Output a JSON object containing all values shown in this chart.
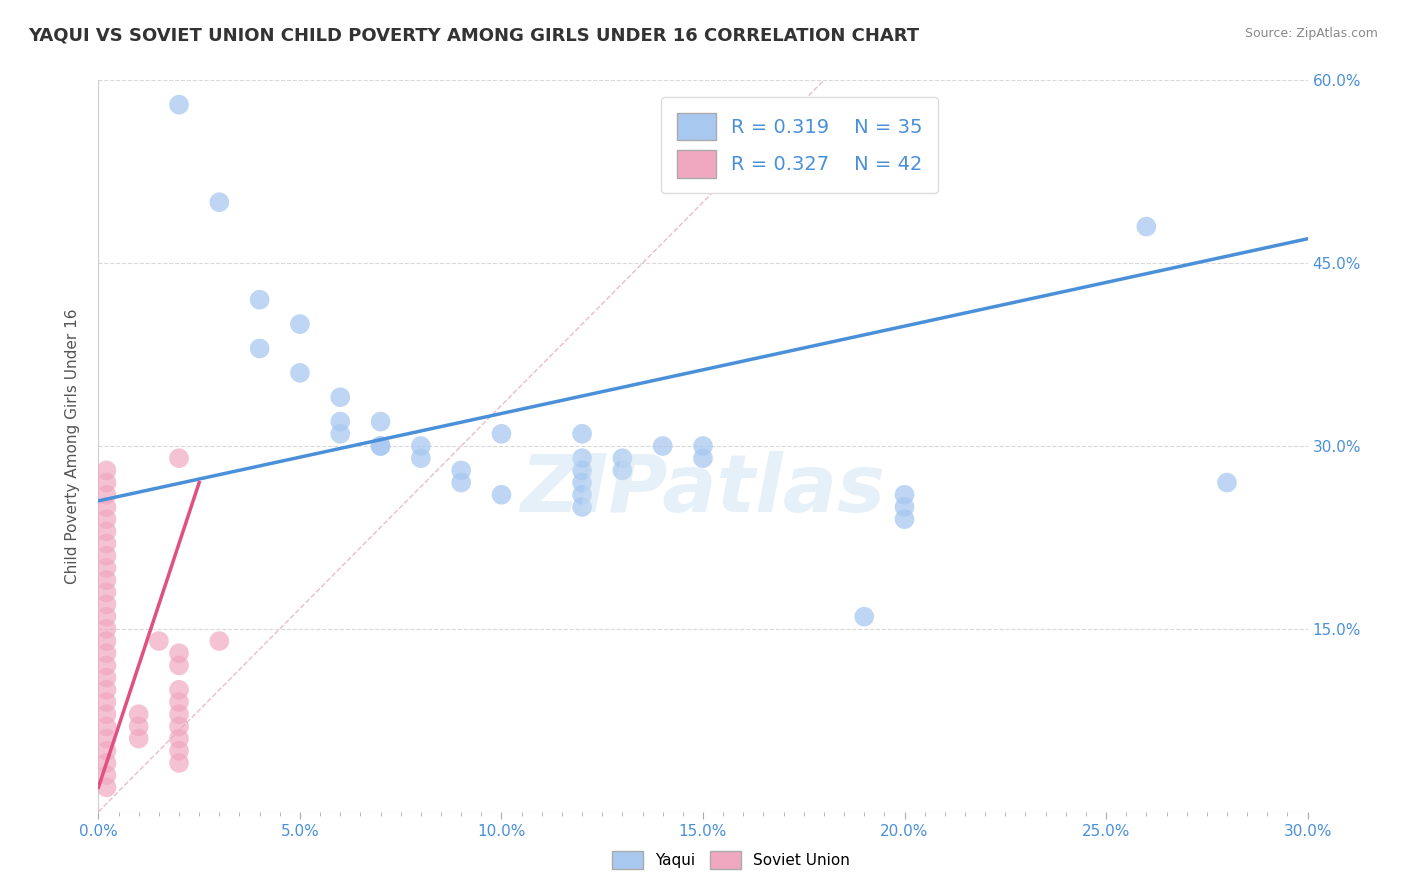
{
  "title": "YAQUI VS SOVIET UNION CHILD POVERTY AMONG GIRLS UNDER 16 CORRELATION CHART",
  "source": "Source: ZipAtlas.com",
  "ylabel": "Child Poverty Among Girls Under 16",
  "xlim": [
    0.0,
    0.3
  ],
  "ylim": [
    0.0,
    0.6
  ],
  "xtick_labels": [
    "0.0%",
    "",
    "",
    "",
    "",
    "",
    "",
    "",
    "",
    "5.0%",
    "",
    "",
    "",
    "",
    "",
    "",
    "",
    "",
    "",
    "10.0%",
    "",
    "",
    "",
    "",
    "",
    "",
    "",
    "",
    "",
    "15.0%",
    "",
    "",
    "",
    "",
    "",
    "",
    "",
    "",
    "",
    "20.0%",
    "",
    "",
    "",
    "",
    "",
    "",
    "",
    "",
    "",
    "25.0%",
    "",
    "",
    "",
    "",
    "",
    "",
    "",
    "",
    "",
    "30.0%"
  ],
  "xtick_major_labels": [
    "0.0%",
    "5.0%",
    "10.0%",
    "15.0%",
    "20.0%",
    "25.0%",
    "30.0%"
  ],
  "xtick_major_vals": [
    0.0,
    0.05,
    0.1,
    0.15,
    0.2,
    0.25,
    0.3
  ],
  "ytick_labels": [
    "15.0%",
    "30.0%",
    "45.0%",
    "60.0%"
  ],
  "ytick_vals": [
    0.15,
    0.3,
    0.45,
    0.6
  ],
  "yaqui_color": "#a8c8f0",
  "soviet_color": "#f0a8c0",
  "yaqui_line_color": "#4a90d9",
  "soviet_line_color": "#e05080",
  "diag_color": "#f0a8c0",
  "yaqui_R": 0.319,
  "yaqui_N": 35,
  "soviet_R": 0.327,
  "soviet_N": 42,
  "watermark": "ZIPatlas",
  "legend_label1": "Yaqui",
  "legend_label2": "Soviet Union",
  "yaqui_scatter": [
    [
      0.02,
      0.58
    ],
    [
      0.03,
      0.5
    ],
    [
      0.04,
      0.42
    ],
    [
      0.04,
      0.38
    ],
    [
      0.05,
      0.4
    ],
    [
      0.05,
      0.36
    ],
    [
      0.06,
      0.34
    ],
    [
      0.06,
      0.32
    ],
    [
      0.06,
      0.31
    ],
    [
      0.07,
      0.32
    ],
    [
      0.07,
      0.3
    ],
    [
      0.07,
      0.3
    ],
    [
      0.08,
      0.3
    ],
    [
      0.08,
      0.29
    ],
    [
      0.09,
      0.28
    ],
    [
      0.09,
      0.27
    ],
    [
      0.1,
      0.31
    ],
    [
      0.1,
      0.26
    ],
    [
      0.12,
      0.31
    ],
    [
      0.12,
      0.29
    ],
    [
      0.12,
      0.28
    ],
    [
      0.12,
      0.27
    ],
    [
      0.12,
      0.26
    ],
    [
      0.12,
      0.25
    ],
    [
      0.13,
      0.29
    ],
    [
      0.13,
      0.28
    ],
    [
      0.14,
      0.3
    ],
    [
      0.15,
      0.29
    ],
    [
      0.15,
      0.3
    ],
    [
      0.19,
      0.16
    ],
    [
      0.2,
      0.26
    ],
    [
      0.2,
      0.25
    ],
    [
      0.2,
      0.24
    ],
    [
      0.26,
      0.48
    ],
    [
      0.28,
      0.27
    ]
  ],
  "soviet_scatter": [
    [
      0.002,
      0.28
    ],
    [
      0.002,
      0.27
    ],
    [
      0.002,
      0.26
    ],
    [
      0.002,
      0.25
    ],
    [
      0.002,
      0.24
    ],
    [
      0.002,
      0.23
    ],
    [
      0.002,
      0.22
    ],
    [
      0.002,
      0.21
    ],
    [
      0.002,
      0.2
    ],
    [
      0.002,
      0.19
    ],
    [
      0.002,
      0.18
    ],
    [
      0.002,
      0.17
    ],
    [
      0.002,
      0.16
    ],
    [
      0.002,
      0.15
    ],
    [
      0.002,
      0.14
    ],
    [
      0.002,
      0.13
    ],
    [
      0.002,
      0.12
    ],
    [
      0.002,
      0.11
    ],
    [
      0.002,
      0.1
    ],
    [
      0.002,
      0.09
    ],
    [
      0.002,
      0.08
    ],
    [
      0.002,
      0.07
    ],
    [
      0.002,
      0.06
    ],
    [
      0.002,
      0.05
    ],
    [
      0.002,
      0.04
    ],
    [
      0.002,
      0.03
    ],
    [
      0.002,
      0.02
    ],
    [
      0.01,
      0.08
    ],
    [
      0.01,
      0.07
    ],
    [
      0.01,
      0.06
    ],
    [
      0.015,
      0.14
    ],
    [
      0.02,
      0.29
    ],
    [
      0.02,
      0.13
    ],
    [
      0.02,
      0.12
    ],
    [
      0.02,
      0.1
    ],
    [
      0.02,
      0.09
    ],
    [
      0.02,
      0.08
    ],
    [
      0.02,
      0.07
    ],
    [
      0.02,
      0.06
    ],
    [
      0.02,
      0.05
    ],
    [
      0.02,
      0.04
    ],
    [
      0.03,
      0.14
    ]
  ],
  "yaqui_line_x": [
    0.0,
    0.3
  ],
  "yaqui_line_y": [
    0.255,
    0.47
  ],
  "soviet_line_x": [
    0.0,
    0.025
  ],
  "soviet_line_y": [
    0.02,
    0.27
  ],
  "diag_line_x": [
    0.0,
    0.18
  ],
  "diag_line_y": [
    0.0,
    0.6
  ]
}
